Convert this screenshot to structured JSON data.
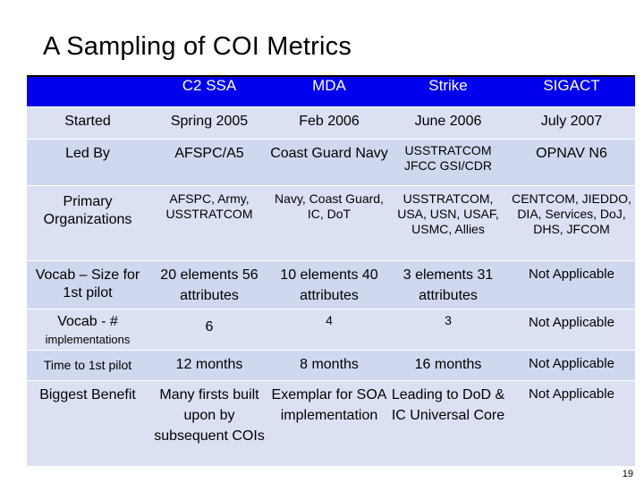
{
  "slide": {
    "title": "A Sampling of COI Metrics",
    "page_number": "19"
  },
  "table": {
    "headers": [
      "",
      "C2 SSA",
      "MDA",
      "Strike",
      "SIGACT"
    ],
    "rows": [
      {
        "label": "Started",
        "cells": [
          "Spring 2005",
          "Feb 2006",
          "June 2006",
          "July 2007"
        ]
      },
      {
        "label": "Led By",
        "cells": [
          "AFSPC/A5",
          "Coast Guard Navy",
          "USSTRATCOM JFCC GSI/CDR",
          "OPNAV N6"
        ]
      },
      {
        "label": "Primary Organizations",
        "cells": [
          "AFSPC, Army, USSTRATCOM",
          "Navy, Coast Guard, IC, DoT",
          "USSTRATCOM, USA, USN, USAF, USMC, Allies",
          "CENTCOM, JIEDDO, DIA, Services, DoJ, DHS, JFCOM"
        ]
      },
      {
        "label": "Vocab – Size for 1st pilot",
        "cells": [
          "20 elements 56 attributes",
          "10 elements 40 attributes",
          "3 elements 31 attributes",
          "Not Applicable"
        ]
      },
      {
        "label": "Vocab - #",
        "label_sub": "implementations",
        "cells": [
          "6",
          "4",
          "3",
          "Not Applicable"
        ]
      },
      {
        "label": "Time to 1st pilot",
        "cells": [
          "12 months",
          "8 months",
          "16 months",
          "Not Applicable"
        ]
      },
      {
        "label": "Biggest Benefit",
        "cells": [
          "Many firsts built upon by subsequent COIs",
          "Exemplar for SOA implementation",
          "Leading to DoD & IC Universal Core",
          "Not Applicable"
        ]
      }
    ]
  }
}
